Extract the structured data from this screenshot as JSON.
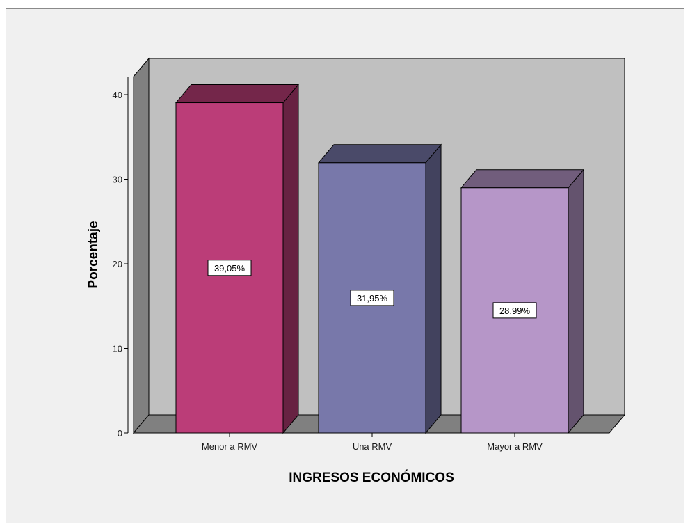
{
  "chart_data": {
    "type": "bar",
    "style": "3d",
    "title": "",
    "xlabel": "INGRESOS ECONÓMICOS",
    "ylabel": "Porcentaje",
    "categories": [
      "Menor a RMV",
      "Una RMV",
      "Mayor a RMV"
    ],
    "values": [
      39.05,
      31.95,
      28.99
    ],
    "data_labels": [
      "39,05%",
      "31,95%",
      "28,99%"
    ],
    "yticks": [
      0,
      10,
      20,
      30,
      40
    ],
    "ylim": [
      0,
      40
    ],
    "grid": false,
    "legend": "none"
  },
  "colors": {
    "bars": [
      "#bb3d78",
      "#7878aa",
      "#b696c8"
    ],
    "plot_back_wall": "#c0c0c0",
    "plot_side_wall": "#808080",
    "plot_floor": "#808080",
    "chart_background": "#f0f0f0"
  }
}
